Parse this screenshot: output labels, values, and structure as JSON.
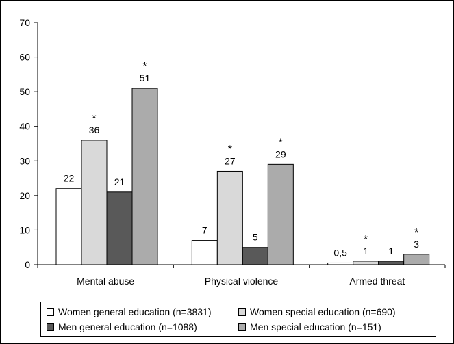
{
  "chart_data": {
    "type": "bar",
    "categories": [
      "Mental abuse",
      "Physical violence",
      "Armed threat"
    ],
    "ylim": [
      0,
      70
    ],
    "yticks": [
      0,
      10,
      20,
      30,
      40,
      50,
      60,
      70
    ],
    "grid": false,
    "legend_position": "bottom",
    "series": [
      {
        "name": "Women general education (n=3831)",
        "color": "#ffffff",
        "values": [
          22,
          7,
          0.5
        ],
        "labels": [
          "22",
          "7",
          "0,5"
        ],
        "stars": [
          false,
          false,
          false
        ]
      },
      {
        "name": "Women special education (n=690)",
        "color": "#d9d9d9",
        "values": [
          36,
          27,
          1
        ],
        "labels": [
          "36",
          "27",
          "1"
        ],
        "stars": [
          true,
          true,
          true
        ]
      },
      {
        "name": "Men general education (n=1088)",
        "color": "#595959",
        "values": [
          21,
          5,
          1
        ],
        "labels": [
          "21",
          "5",
          "1"
        ],
        "stars": [
          false,
          false,
          false
        ]
      },
      {
        "name": "Men special education (n=151)",
        "color": "#ababab",
        "values": [
          51,
          29,
          3
        ],
        "labels": [
          "51",
          "29",
          "3"
        ],
        "stars": [
          true,
          true,
          true
        ]
      }
    ],
    "star_symbol": "*"
  }
}
